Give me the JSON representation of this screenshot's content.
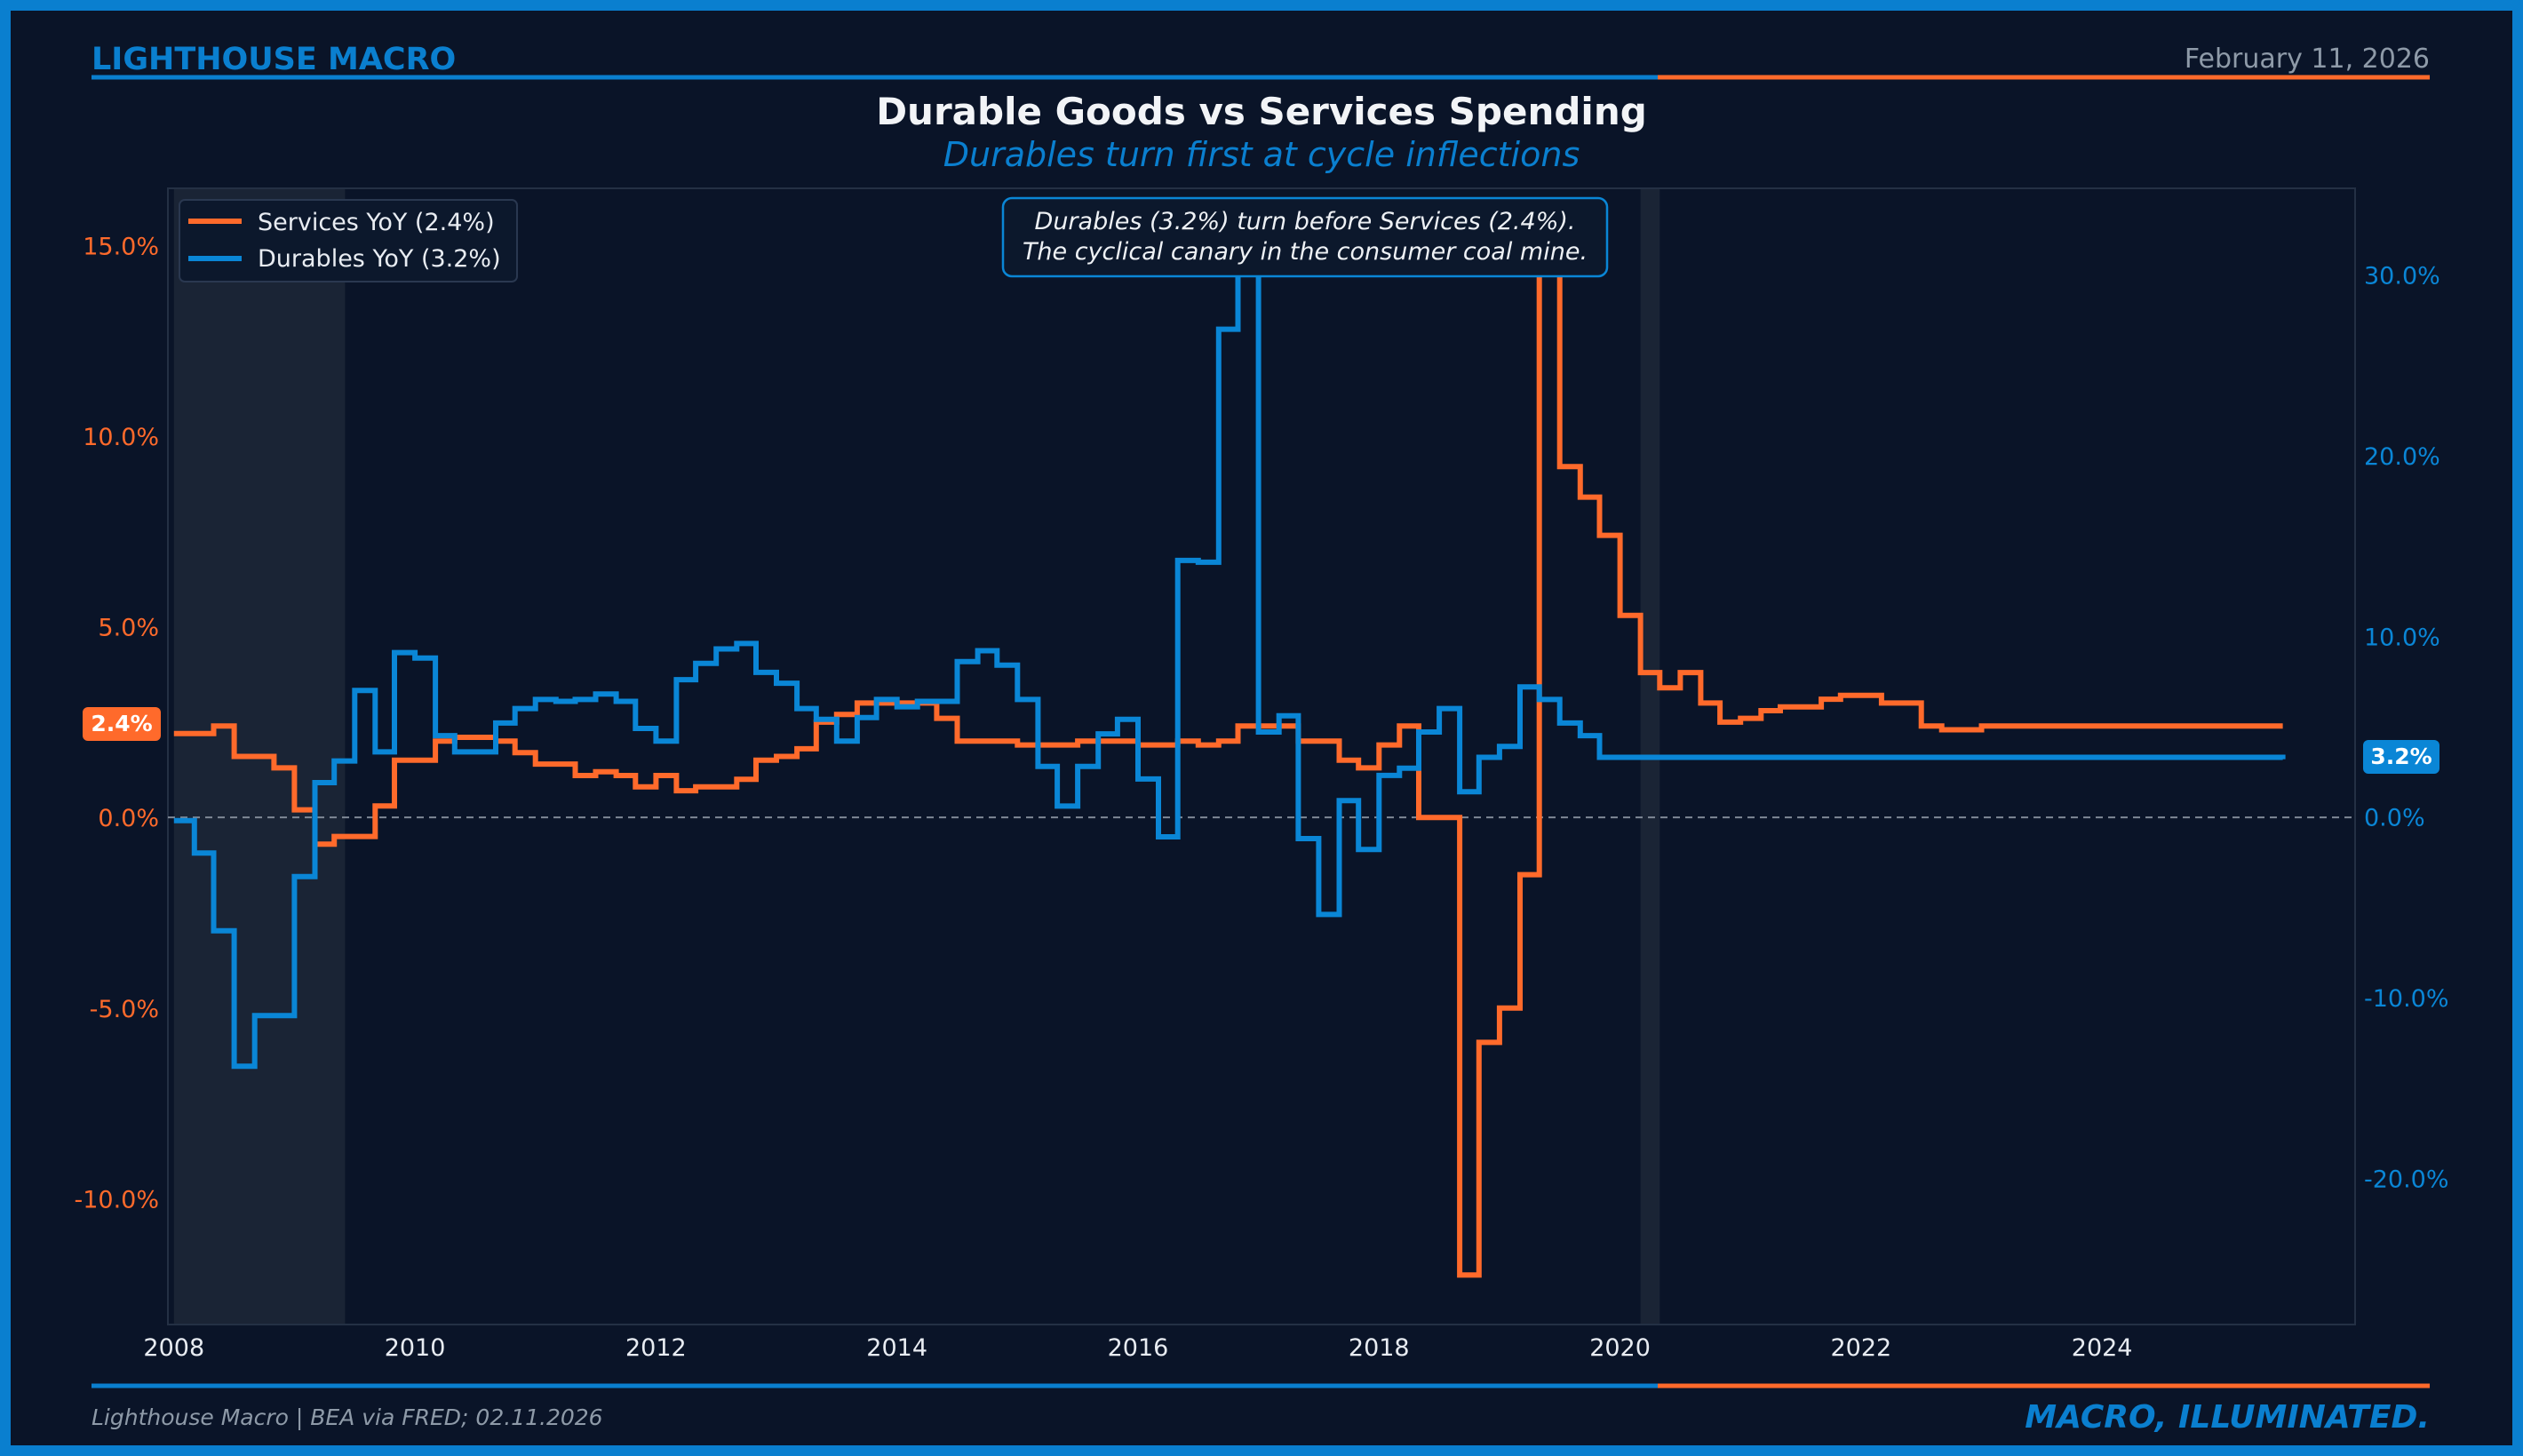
{
  "header": {
    "brand": "LIGHTHOUSE MACRO",
    "date": "February 11, 2026"
  },
  "footer": {
    "source": "Lighthouse Macro | BEA via FRED; 02.11.2026",
    "tagline": "MACRO, ILLUMINATED."
  },
  "colors": {
    "background": "#0a1428",
    "services": "#ff6a2b",
    "durables": "#0a86d6",
    "brand_blue": "#0a7fcf",
    "recession_shade": "#1c2636"
  },
  "chart_data": {
    "type": "line",
    "title": "Durable Goods vs Services Spending",
    "subtitle": "Durables turn first at cycle inflections",
    "annotation": [
      "Durables (3.2%) turn before Services (2.4%).",
      "The cyclical canary in the consumer coal mine."
    ],
    "legend": {
      "position": "top-left",
      "entries": [
        "Services YoY (2.4%)",
        "Durables YoY (3.2%)"
      ]
    },
    "x_axis": {
      "range": [
        2007.95,
        2026.1
      ],
      "ticks": [
        2008,
        2010,
        2012,
        2014,
        2016,
        2018,
        2020,
        2022,
        2024
      ],
      "tick_labels": [
        "2008",
        "2010",
        "2012",
        "2014",
        "2016",
        "2018",
        "2020",
        "2022",
        "2024"
      ]
    },
    "y_left": {
      "range": [
        -13.3,
        16.5
      ],
      "ticks": [
        -10,
        -5,
        0,
        5,
        10,
        15
      ],
      "tick_labels": [
        "-10.0%",
        "-5.0%",
        "0.0%",
        "5.0%",
        "10.0%",
        "15.0%"
      ]
    },
    "y_right": {
      "range": [
        -28.1,
        34.8
      ],
      "ticks": [
        -20,
        -10,
        0,
        10,
        20,
        30
      ],
      "tick_labels": [
        "-20.0%",
        "-10.0%",
        "0.0%",
        "10.0%",
        "20.0%",
        "30.0%"
      ]
    },
    "recessions": [
      [
        2008.0,
        2009.42
      ],
      [
        2020.17,
        2020.33
      ]
    ],
    "end_labels": {
      "services": "2.4%",
      "durables": "3.2%"
    },
    "series": [
      {
        "name": "Services YoY (2.4%)",
        "axis": "left",
        "color": "#ff6a2b",
        "x": [
          2008.0,
          2008.17,
          2008.33,
          2008.5,
          2008.67,
          2008.83,
          2009.0,
          2009.17,
          2009.33,
          2009.5,
          2009.67,
          2009.83,
          2010.0,
          2010.17,
          2010.33,
          2010.5,
          2010.67,
          2010.83,
          2011.0,
          2011.17,
          2011.33,
          2011.5,
          2011.67,
          2011.83,
          2012.0,
          2012.17,
          2012.33,
          2012.5,
          2012.67,
          2012.83,
          2013.0,
          2013.17,
          2013.33,
          2013.5,
          2013.67,
          2013.83,
          2014.0,
          2014.17,
          2014.33,
          2014.5,
          2014.67,
          2014.83,
          2015.0,
          2015.17,
          2015.33,
          2015.5,
          2015.67,
          2015.83,
          2016.0,
          2016.17,
          2016.33,
          2016.5,
          2016.67,
          2016.83,
          2017.0,
          2017.17,
          2017.33,
          2017.5,
          2017.67,
          2017.83,
          2018.0,
          2018.17,
          2018.33,
          2018.5,
          2018.67,
          2018.83,
          2019.0,
          2019.17,
          2019.33,
          2019.5,
          2019.67,
          2019.83,
          2020.0,
          2020.17,
          2020.33,
          2020.5,
          2020.67,
          2020.83,
          2021.0,
          2021.17,
          2021.33,
          2021.5,
          2021.67,
          2021.83,
          2022.0,
          2022.17,
          2022.33,
          2022.5,
          2022.67,
          2022.83,
          2023.0,
          2023.17,
          2023.33,
          2023.5,
          2023.67,
          2023.83,
          2024.0,
          2024.17,
          2024.33,
          2024.5,
          2024.67,
          2024.83,
          2025.0,
          2025.17,
          2025.33,
          2025.5
        ],
        "values": [
          2.2,
          2.2,
          2.4,
          1.6,
          1.6,
          1.3,
          0.2,
          -0.7,
          -0.5,
          -0.5,
          0.3,
          1.5,
          1.5,
          2.0,
          2.1,
          2.1,
          2.0,
          1.7,
          1.4,
          1.4,
          1.1,
          1.2,
          1.1,
          0.8,
          1.1,
          0.7,
          0.8,
          0.8,
          1.0,
          1.5,
          1.6,
          1.8,
          2.5,
          2.7,
          3.0,
          3.0,
          3.0,
          3.0,
          2.6,
          2.0,
          2.0,
          2.0,
          1.9,
          1.9,
          1.9,
          2.0,
          2.0,
          2.0,
          1.9,
          1.9,
          2.0,
          1.9,
          2.0,
          2.4,
          2.4,
          2.4,
          2.0,
          2.0,
          1.5,
          1.3,
          1.9,
          2.4,
          0.0,
          0.0,
          -12.0,
          -5.9,
          -5.0,
          -1.5,
          15.0,
          9.2,
          8.4,
          7.4,
          5.3,
          3.8,
          3.4,
          3.8,
          3.0,
          2.5,
          2.6,
          2.8,
          2.9,
          2.9,
          3.1,
          3.2,
          3.2,
          3.0,
          3.0,
          2.4,
          2.3,
          2.3,
          2.4,
          2.4,
          2.4,
          2.4,
          2.4,
          2.4,
          2.4,
          2.4,
          2.4,
          2.4,
          2.4,
          2.4,
          2.4,
          2.4,
          2.4,
          2.4
        ]
      },
      {
        "name": "Durables YoY (3.2%)",
        "axis": "right",
        "color": "#0a86d6",
        "x": [
          2008.0,
          2008.17,
          2008.33,
          2008.5,
          2008.67,
          2008.83,
          2009.0,
          2009.17,
          2009.33,
          2009.5,
          2009.67,
          2009.83,
          2010.0,
          2010.17,
          2010.33,
          2010.5,
          2010.67,
          2010.83,
          2011.0,
          2011.17,
          2011.33,
          2011.5,
          2011.67,
          2011.83,
          2012.0,
          2012.17,
          2012.33,
          2012.5,
          2012.67,
          2012.83,
          2013.0,
          2013.17,
          2013.33,
          2013.5,
          2013.67,
          2013.83,
          2014.0,
          2014.17,
          2014.33,
          2014.5,
          2014.67,
          2014.83,
          2015.0,
          2015.17,
          2015.33,
          2015.5,
          2015.67,
          2015.83,
          2016.0,
          2016.17,
          2016.33,
          2016.5,
          2016.67,
          2016.83,
          2017.0,
          2017.17,
          2017.33,
          2017.5,
          2017.67,
          2017.83,
          2018.0,
          2018.17,
          2018.33,
          2018.5,
          2018.67,
          2018.83,
          2019.0,
          2019.17,
          2019.33,
          2019.5,
          2019.67,
          2019.83,
          2020.0,
          2020.17,
          2020.33,
          2020.5,
          2020.67,
          2020.83,
          2021.0,
          2021.17,
          2021.33,
          2021.5,
          2021.67,
          2021.83,
          2022.0,
          2022.17,
          2022.33,
          2022.5,
          2022.67,
          2022.83,
          2023.0,
          2023.17,
          2023.33,
          2023.5,
          2023.67,
          2023.83,
          2024.0,
          2024.17,
          2024.33,
          2024.5,
          2024.67,
          2024.83,
          2025.0,
          2025.17,
          2025.33,
          2025.5
        ],
        "values": [
          -0.2,
          -2.0,
          -6.3,
          -13.8,
          -11.0,
          -11.0,
          -3.3,
          1.9,
          3.1,
          7.0,
          3.6,
          9.1,
          8.8,
          4.5,
          3.6,
          3.6,
          5.2,
          6.0,
          6.5,
          6.4,
          6.5,
          6.8,
          6.4,
          4.9,
          4.2,
          7.6,
          8.5,
          9.3,
          9.6,
          8.0,
          7.4,
          6.0,
          5.4,
          4.2,
          5.5,
          6.5,
          6.1,
          6.4,
          6.4,
          8.6,
          9.2,
          8.4,
          6.5,
          2.8,
          0.6,
          2.8,
          4.6,
          5.4,
          2.1,
          -1.1,
          14.2,
          14.1,
          27.0,
          32.4,
          4.7,
          5.6,
          -1.2,
          -5.4,
          0.9,
          -1.8,
          2.3,
          2.7,
          4.7,
          6.0,
          1.4,
          3.3,
          3.9,
          7.2,
          6.5,
          5.2,
          4.5,
          3.3,
          3.3,
          3.3,
          3.3,
          3.3,
          3.3,
          3.3,
          3.3,
          3.3,
          3.3,
          3.3,
          3.3,
          3.3,
          3.3,
          3.3,
          3.3,
          3.3,
          3.3,
          3.3,
          3.3,
          3.3,
          3.3,
          3.3,
          3.3,
          3.3,
          3.3,
          3.3,
          3.3,
          3.3,
          3.3,
          3.3,
          3.3,
          3.3,
          3.3,
          3.2
        ]
      }
    ]
  }
}
